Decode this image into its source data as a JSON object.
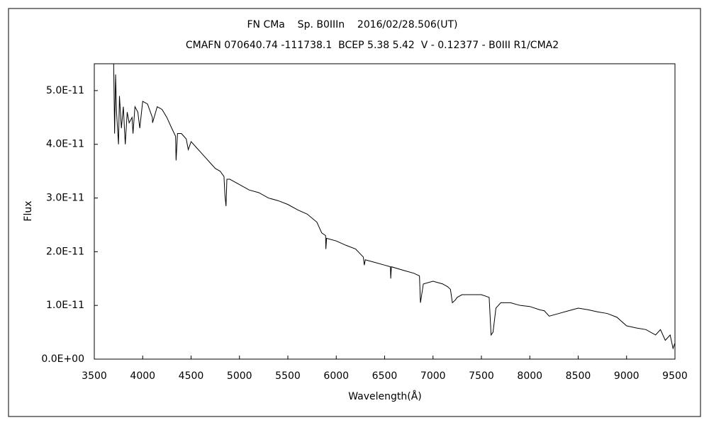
{
  "chart_data": {
    "type": "line",
    "title": "FN CMa    Sp. B0IIIn    2016/02/28.506(UT)",
    "subtitle": "CMAFN 070640.74 -111738.1  BCEP 5.38 5.42  V - 0.12377 - B0III R1/CMA2",
    "x_label": "Wavelength(Å)",
    "y_label": "Flux",
    "xlim": [
      3500,
      9500
    ],
    "xticks": [
      3500,
      4000,
      4500,
      5000,
      5500,
      6000,
      6500,
      7000,
      7500,
      8000,
      8500,
      9000,
      9500
    ],
    "ylim": [
      0,
      5.5e-11
    ],
    "yticks": [
      {
        "value": 0,
        "label": "0.0E+00"
      },
      {
        "value": 1e-11,
        "label": "1.0E-11"
      },
      {
        "value": 2e-11,
        "label": "2.0E-11"
      },
      {
        "value": 3e-11,
        "label": "3.0E-11"
      },
      {
        "value": 4e-11,
        "label": "4.0E-11"
      },
      {
        "value": 5e-11,
        "label": "5.0E-11"
      }
    ],
    "color": "#000000",
    "x": [
      3700,
      3710,
      3720,
      3730,
      3750,
      3760,
      3780,
      3800,
      3820,
      3840,
      3860,
      3890,
      3900,
      3920,
      3950,
      3970,
      4000,
      4050,
      4100,
      4102,
      4150,
      4200,
      4250,
      4300,
      4340,
      4345,
      4360,
      4400,
      4450,
      4471,
      4500,
      4550,
      4600,
      4650,
      4700,
      4750,
      4800,
      4840,
      4850,
      4861,
      4870,
      4900,
      4950,
      5000,
      5100,
      5200,
      5300,
      5400,
      5500,
      5600,
      5700,
      5800,
      5850,
      5890,
      5893,
      5900,
      6000,
      6100,
      6200,
      6280,
      6290,
      6300,
      6400,
      6500,
      6560,
      6563,
      6570,
      6700,
      6800,
      6860,
      6870,
      6900,
      7000,
      7100,
      7150,
      7180,
      7200,
      7230,
      7250,
      7300,
      7400,
      7500,
      7580,
      7600,
      7620,
      7650,
      7700,
      7800,
      7900,
      8000,
      8100,
      8150,
      8200,
      8300,
      8400,
      8500,
      8600,
      8700,
      8800,
      8900,
      9000,
      9100,
      9200,
      9300,
      9350,
      9400,
      9450,
      9480,
      9500
    ],
    "values": [
      5.5e-11,
      4.2e-11,
      5.3e-11,
      4.6e-11,
      4e-11,
      4.9e-11,
      4.3e-11,
      4.7e-11,
      4e-11,
      4.6e-11,
      4.4e-11,
      4.5e-11,
      4.2e-11,
      4.7e-11,
      4.6e-11,
      4.3e-11,
      4.8e-11,
      4.75e-11,
      4.5e-11,
      4.4e-11,
      4.7e-11,
      4.65e-11,
      4.5e-11,
      4.3e-11,
      4.15e-11,
      3.7e-11,
      4.2e-11,
      4.2e-11,
      4.1e-11,
      3.9e-11,
      4.05e-11,
      3.95e-11,
      3.85e-11,
      3.75e-11,
      3.65e-11,
      3.55e-11,
      3.5e-11,
      3.4e-11,
      3.05e-11,
      2.85e-11,
      3.35e-11,
      3.35e-11,
      3.3e-11,
      3.25e-11,
      3.15e-11,
      3.1e-11,
      3e-11,
      2.95e-11,
      2.88e-11,
      2.78e-11,
      2.7e-11,
      2.55e-11,
      2.35e-11,
      2.3e-11,
      2.05e-11,
      2.25e-11,
      2.2e-11,
      2.12e-11,
      2.05e-11,
      1.9e-11,
      1.75e-11,
      1.85e-11,
      1.8e-11,
      1.75e-11,
      1.72e-11,
      1.5e-11,
      1.72e-11,
      1.65e-11,
      1.6e-11,
      1.55e-11,
      1.05e-11,
      1.4e-11,
      1.45e-11,
      1.4e-11,
      1.35e-11,
      1.3e-11,
      1.05e-11,
      1.1e-11,
      1.15e-11,
      1.2e-11,
      1.2e-11,
      1.2e-11,
      1.15e-11,
      4.5e-12,
      5e-12,
      9.5e-12,
      1.05e-11,
      1.05e-11,
      1e-11,
      9.8e-12,
      9.2e-12,
      9e-12,
      8e-12,
      8.5e-12,
      9e-12,
      9.5e-12,
      9.2e-12,
      8.8e-12,
      8.5e-12,
      7.8e-12,
      6.2e-12,
      5.8e-12,
      5.5e-12,
      4.5e-12,
      5.5e-12,
      3.5e-12,
      4.5e-12,
      2e-12,
      3e-12
    ]
  }
}
